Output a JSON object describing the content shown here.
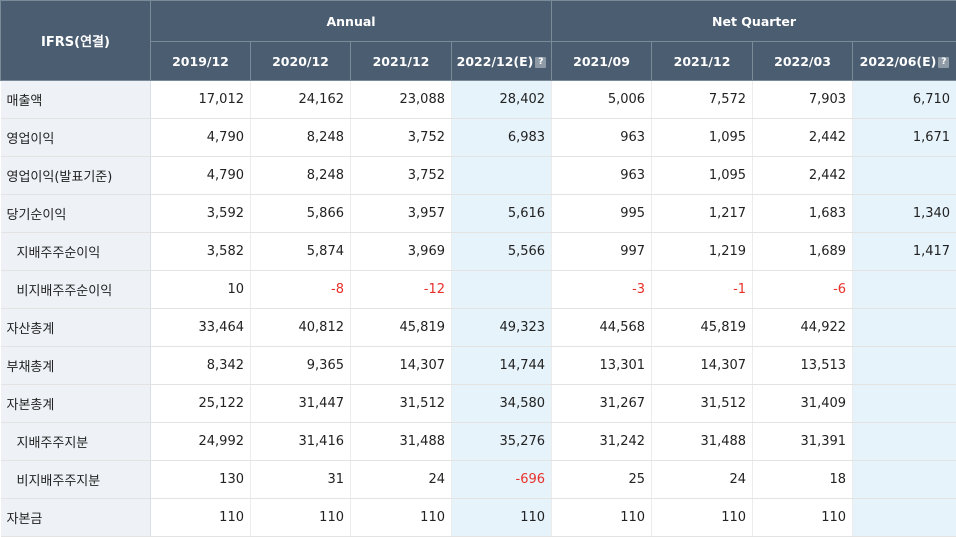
{
  "header": {
    "corner": "IFRS(연결)",
    "group_annual": "Annual",
    "group_quarter": "Net Quarter",
    "periods": [
      "2019/12",
      "2020/12",
      "2021/12",
      "2022/12(E)",
      "2021/09",
      "2021/12",
      "2022/03",
      "2022/06(E)"
    ]
  },
  "rows": [
    {
      "label": "매출액",
      "values": [
        "17,012",
        "24,162",
        "23,088",
        "28,402",
        "5,006",
        "7,572",
        "7,903",
        "6,710"
      ]
    },
    {
      "label": "영업이익",
      "values": [
        "4,790",
        "8,248",
        "3,752",
        "6,983",
        "963",
        "1,095",
        "2,442",
        "1,671"
      ]
    },
    {
      "label": "영업이익(발표기준)",
      "values": [
        "4,790",
        "8,248",
        "3,752",
        "",
        "963",
        "1,095",
        "2,442",
        ""
      ]
    },
    {
      "label": "당기순이익",
      "values": [
        "3,592",
        "5,866",
        "3,957",
        "5,616",
        "995",
        "1,217",
        "1,683",
        "1,340"
      ]
    },
    {
      "label": "지배주주순이익",
      "values": [
        "3,582",
        "5,874",
        "3,969",
        "5,566",
        "997",
        "1,219",
        "1,689",
        "1,417"
      ]
    },
    {
      "label": "비지배주주순이익",
      "values": [
        "10",
        "-8",
        "-12",
        "",
        "-3",
        "-1",
        "-6",
        ""
      ]
    },
    {
      "label": "자산총계",
      "values": [
        "33,464",
        "40,812",
        "45,819",
        "49,323",
        "44,568",
        "45,819",
        "44,922",
        ""
      ]
    },
    {
      "label": "부채총계",
      "values": [
        "8,342",
        "9,365",
        "14,307",
        "14,744",
        "13,301",
        "14,307",
        "13,513",
        ""
      ]
    },
    {
      "label": "자본총계",
      "values": [
        "25,122",
        "31,447",
        "31,512",
        "34,580",
        "31,267",
        "31,512",
        "31,409",
        ""
      ]
    },
    {
      "label": "지배주주지분",
      "values": [
        "24,992",
        "31,416",
        "31,488",
        "35,276",
        "31,242",
        "31,488",
        "31,391",
        ""
      ]
    },
    {
      "label": "비지배주주지분",
      "values": [
        "130",
        "31",
        "24",
        "-696",
        "25",
        "24",
        "18",
        ""
      ]
    },
    {
      "label": "자본금",
      "values": [
        "110",
        "110",
        "110",
        "110",
        "110",
        "110",
        "110",
        ""
      ]
    }
  ],
  "colors": {
    "header_bg": "#4b5d70",
    "estimate_bg": "#e6f3fb",
    "label_bg": "#eef2f7",
    "negative": "#e8302a"
  },
  "icons": {
    "estimate_help": "question-icon"
  }
}
